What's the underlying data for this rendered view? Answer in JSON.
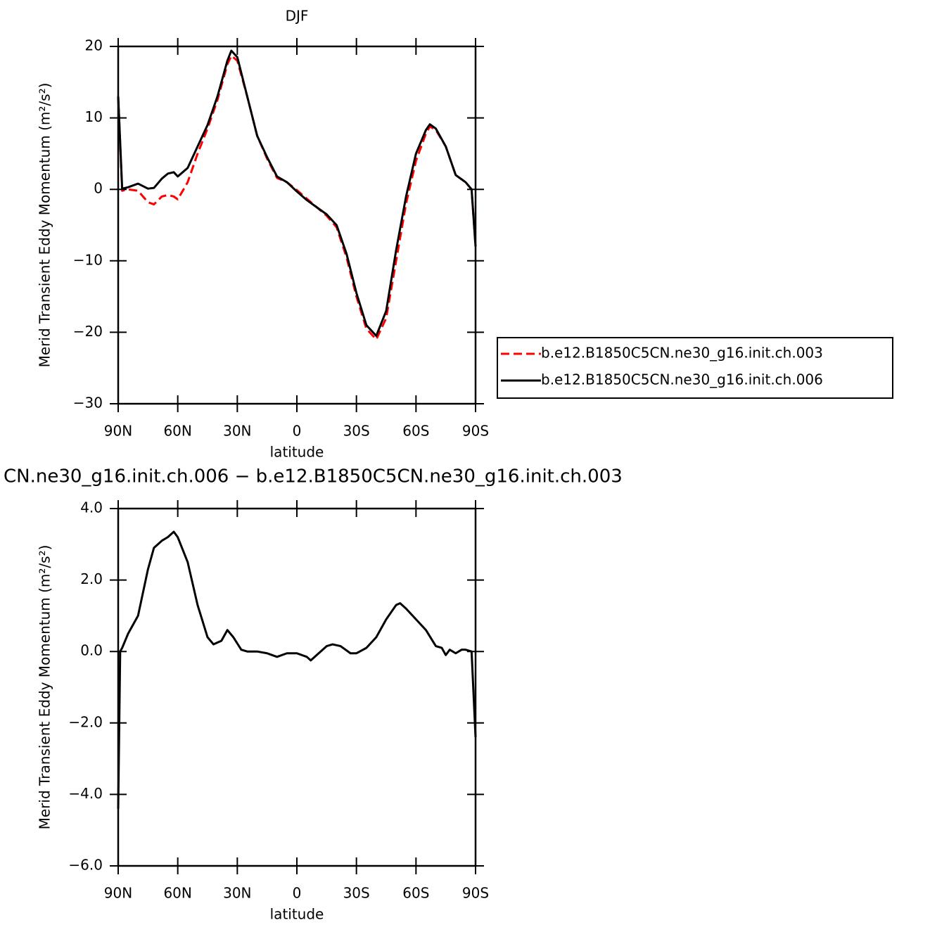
{
  "chart_data": [
    {
      "type": "line",
      "title": "DJF",
      "xlabel": "latitude",
      "ylabel": "Merid Transient Eddy Momentum (m²/s²)",
      "x": [
        90,
        88,
        85,
        80,
        75,
        72,
        68,
        65,
        62,
        60,
        55,
        50,
        45,
        40,
        35,
        33,
        30,
        25,
        20,
        15,
        10,
        5,
        0,
        -5,
        -10,
        -15,
        -20,
        -25,
        -30,
        -35,
        -40,
        -45,
        -50,
        -55,
        -60,
        -65,
        -67,
        -70,
        -75,
        -80,
        -85,
        -88,
        -90
      ],
      "series": [
        {
          "name": "b.e12.B1850C5CN.ne30_g16.init.ch.003",
          "color": "#ff0000",
          "dash": true,
          "values": [
            13,
            -0.2,
            0,
            -0.2,
            -1.8,
            -2.1,
            -1.0,
            -0.8,
            -1.0,
            -1.4,
            1,
            5,
            8.5,
            12.5,
            17.5,
            18.7,
            18,
            13,
            7.5,
            4.3,
            1.6,
            1,
            -0.1,
            -1.3,
            -2.5,
            -3.7,
            -5.3,
            -9.5,
            -15,
            -19.5,
            -21,
            -18,
            -10,
            -2,
            4,
            7.8,
            8.8,
            8.3,
            6,
            2,
            1,
            0,
            -8
          ]
        },
        {
          "name": "b.e12.B1850C5CN.ne30_g16.init.ch.006",
          "color": "#000000",
          "dash": false,
          "values": [
            13,
            0.1,
            0.3,
            0.8,
            0.1,
            0.2,
            1.5,
            2.2,
            2.4,
            1.8,
            3.0,
            6,
            9,
            13,
            18,
            19.4,
            18.5,
            13,
            7.5,
            4.5,
            1.8,
            1,
            -0.3,
            -1.5,
            -2.5,
            -3.5,
            -5,
            -9,
            -14.5,
            -19,
            -20.5,
            -17,
            -8.5,
            -1,
            5,
            8.3,
            9.1,
            8.5,
            6,
            2,
            1,
            0,
            -8
          ]
        }
      ],
      "xlim": [
        90,
        -90
      ],
      "xticks": [
        {
          "value": 90,
          "label": "90N"
        },
        {
          "value": 60,
          "label": "60N"
        },
        {
          "value": 30,
          "label": "30N"
        },
        0,
        {
          "value": -30,
          "label": "30S"
        },
        {
          "value": -60,
          "label": "60S"
        },
        {
          "value": -90,
          "label": "90S"
        }
      ],
      "ylim": [
        -30,
        20
      ],
      "yticks": [
        20,
        10,
        0,
        {
          "value": -10,
          "label": "−10"
        },
        {
          "value": -20,
          "label": "−20"
        },
        {
          "value": -30,
          "label": "−30"
        }
      ],
      "legend": "right"
    },
    {
      "type": "line",
      "title": "CN.ne30_g16.init.ch.006 − b.e12.B1850C5CN.ne30_g16.init.ch.003",
      "xlabel": "latitude",
      "ylabel": "Merid Transient Eddy Momentum (m²/s²)",
      "x": [
        90,
        89,
        88,
        85,
        80,
        75,
        72,
        68,
        65,
        62,
        60,
        55,
        50,
        45,
        42,
        38,
        35,
        32,
        28,
        25,
        20,
        15,
        10,
        5,
        0,
        -5,
        -7,
        -10,
        -15,
        -18,
        -22,
        -27,
        -30,
        -35,
        -40,
        -45,
        -50,
        -52,
        -55,
        -60,
        -65,
        -70,
        -73,
        -75,
        -77,
        -80,
        -83,
        -85,
        -88,
        -90
      ],
      "values": [
        -4.4,
        0,
        0.1,
        0.5,
        1.0,
        2.3,
        2.9,
        3.1,
        3.2,
        3.35,
        3.2,
        2.5,
        1.3,
        0.4,
        0.2,
        0.3,
        0.6,
        0.4,
        0.05,
        0,
        0,
        -0.05,
        -0.15,
        -0.05,
        -0.05,
        -0.15,
        -0.25,
        -0.1,
        0.15,
        0.2,
        0.15,
        -0.05,
        -0.05,
        0.1,
        0.4,
        0.9,
        1.3,
        1.35,
        1.2,
        0.9,
        0.6,
        0.15,
        0.1,
        -0.1,
        0.05,
        -0.05,
        0.05,
        0.05,
        0,
        -2.4
      ],
      "color": "#000000",
      "xlim": [
        90,
        -90
      ],
      "xticks": [
        {
          "value": 90,
          "label": "90N"
        },
        {
          "value": 60,
          "label": "60N"
        },
        {
          "value": 30,
          "label": "30N"
        },
        0,
        {
          "value": -30,
          "label": "30S"
        },
        {
          "value": -60,
          "label": "60S"
        },
        {
          "value": -90,
          "label": "90S"
        }
      ],
      "ylim": [
        -6,
        4
      ],
      "yticks": [
        {
          "value": 4,
          "label": "4.0"
        },
        {
          "value": 2,
          "label": "2.0"
        },
        {
          "value": 0,
          "label": "0.0"
        },
        {
          "value": -2,
          "label": "−2.0"
        },
        {
          "value": -4,
          "label": "−4.0"
        },
        {
          "value": -6,
          "label": "−6.0"
        }
      ]
    }
  ]
}
